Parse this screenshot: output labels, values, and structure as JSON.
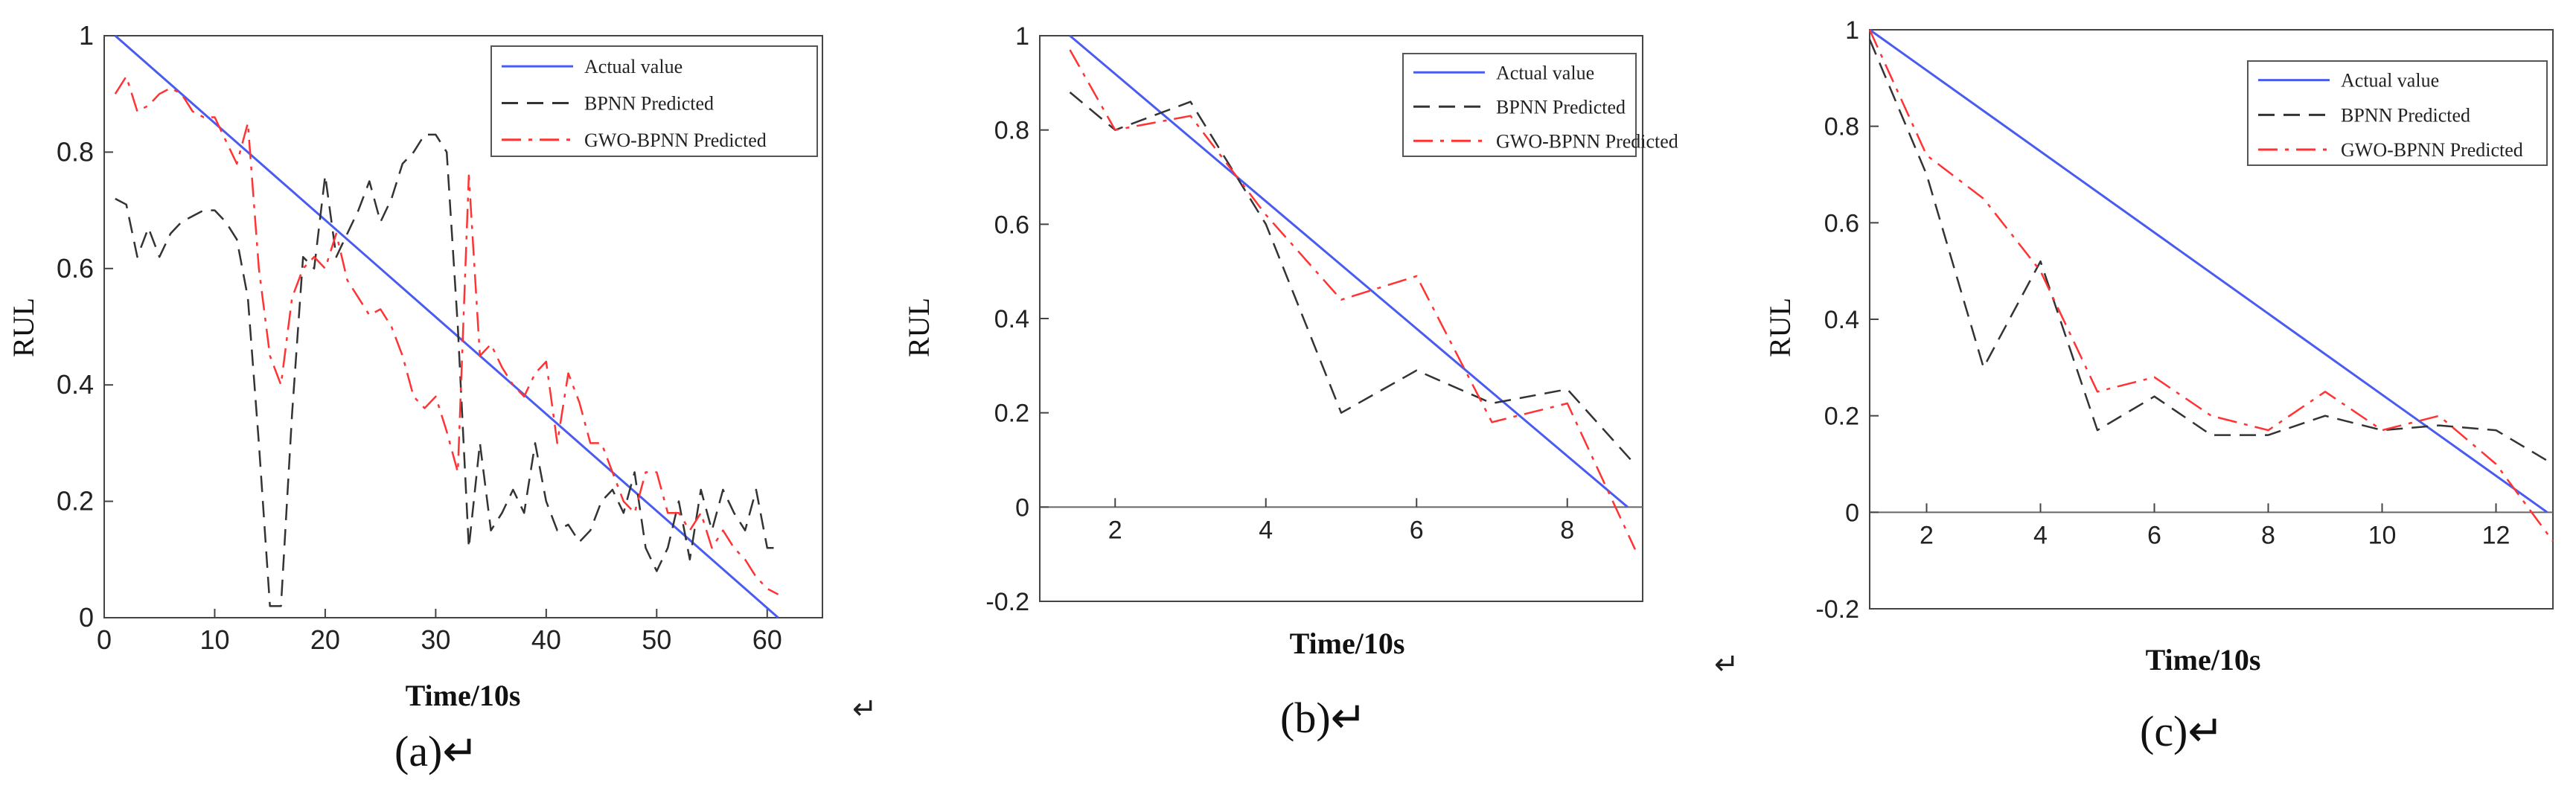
{
  "chart_data": [
    {
      "type": "line",
      "caption": "(a)↵",
      "xlabel": "Time/10s",
      "ylabel": "RUL",
      "xlim": [
        0,
        65
      ],
      "ylim": [
        0,
        1
      ],
      "xticks": [
        0,
        10,
        20,
        30,
        40,
        50,
        60
      ],
      "yticks": [
        0,
        0.2,
        0.4,
        0.6,
        0.8,
        1
      ],
      "legend_position": "top-right",
      "series": [
        {
          "name": "Actual value",
          "style": "solid",
          "color": "#4a5cf0",
          "points": [
            [
              1,
              1.0
            ],
            [
              61,
              0.0
            ]
          ]
        },
        {
          "name": "BPNN Predicted",
          "style": "dashed",
          "color": "#333333",
          "points": [
            [
              1,
              0.72
            ],
            [
              2,
              0.71
            ],
            [
              3,
              0.62
            ],
            [
              4,
              0.67
            ],
            [
              5,
              0.62
            ],
            [
              6,
              0.66
            ],
            [
              7,
              0.68
            ],
            [
              8,
              0.69
            ],
            [
              9,
              0.7
            ],
            [
              10,
              0.7
            ],
            [
              11,
              0.68
            ],
            [
              12,
              0.65
            ],
            [
              13,
              0.55
            ],
            [
              14,
              0.3
            ],
            [
              15,
              0.02
            ],
            [
              16,
              0.02
            ],
            [
              17,
              0.35
            ],
            [
              18,
              0.62
            ],
            [
              19,
              0.6
            ],
            [
              20,
              0.76
            ],
            [
              21,
              0.62
            ],
            [
              22,
              0.66
            ],
            [
              23,
              0.7
            ],
            [
              24,
              0.75
            ],
            [
              25,
              0.68
            ],
            [
              26,
              0.72
            ],
            [
              27,
              0.78
            ],
            [
              28,
              0.8
            ],
            [
              29,
              0.83
            ],
            [
              30,
              0.83
            ],
            [
              31,
              0.8
            ],
            [
              32,
              0.5
            ],
            [
              33,
              0.12
            ],
            [
              34,
              0.3
            ],
            [
              35,
              0.15
            ],
            [
              36,
              0.18
            ],
            [
              37,
              0.22
            ],
            [
              38,
              0.18
            ],
            [
              39,
              0.3
            ],
            [
              40,
              0.2
            ],
            [
              41,
              0.15
            ],
            [
              42,
              0.16
            ],
            [
              43,
              0.13
            ],
            [
              44,
              0.15
            ],
            [
              45,
              0.2
            ],
            [
              46,
              0.22
            ],
            [
              47,
              0.18
            ],
            [
              48,
              0.25
            ],
            [
              49,
              0.12
            ],
            [
              50,
              0.08
            ],
            [
              51,
              0.12
            ],
            [
              52,
              0.2
            ],
            [
              53,
              0.1
            ],
            [
              54,
              0.22
            ],
            [
              55,
              0.15
            ],
            [
              56,
              0.22
            ],
            [
              57,
              0.18
            ],
            [
              58,
              0.15
            ],
            [
              59,
              0.22
            ],
            [
              60,
              0.12
            ],
            [
              61,
              0.12
            ]
          ]
        },
        {
          "name": "GWO-BPNN Predicted",
          "style": "dashdot",
          "color": "#ff3333",
          "points": [
            [
              1,
              0.9
            ],
            [
              2,
              0.93
            ],
            [
              3,
              0.87
            ],
            [
              4,
              0.88
            ],
            [
              5,
              0.9
            ],
            [
              6,
              0.91
            ],
            [
              7,
              0.9
            ],
            [
              8,
              0.87
            ],
            [
              9,
              0.86
            ],
            [
              10,
              0.86
            ],
            [
              11,
              0.82
            ],
            [
              12,
              0.78
            ],
            [
              13,
              0.85
            ],
            [
              14,
              0.6
            ],
            [
              15,
              0.45
            ],
            [
              16,
              0.4
            ],
            [
              17,
              0.55
            ],
            [
              18,
              0.6
            ],
            [
              19,
              0.62
            ],
            [
              20,
              0.6
            ],
            [
              21,
              0.66
            ],
            [
              22,
              0.58
            ],
            [
              23,
              0.55
            ],
            [
              24,
              0.52
            ],
            [
              25,
              0.53
            ],
            [
              26,
              0.5
            ],
            [
              27,
              0.45
            ],
            [
              28,
              0.38
            ],
            [
              29,
              0.36
            ],
            [
              30,
              0.38
            ],
            [
              31,
              0.32
            ],
            [
              32,
              0.25
            ],
            [
              33,
              0.76
            ],
            [
              34,
              0.45
            ],
            [
              35,
              0.47
            ],
            [
              36,
              0.43
            ],
            [
              37,
              0.4
            ],
            [
              38,
              0.38
            ],
            [
              39,
              0.42
            ],
            [
              40,
              0.44
            ],
            [
              41,
              0.3
            ],
            [
              42,
              0.42
            ],
            [
              43,
              0.37
            ],
            [
              44,
              0.3
            ],
            [
              45,
              0.3
            ],
            [
              46,
              0.25
            ],
            [
              47,
              0.2
            ],
            [
              48,
              0.18
            ],
            [
              49,
              0.25
            ],
            [
              50,
              0.25
            ],
            [
              51,
              0.18
            ],
            [
              52,
              0.18
            ],
            [
              53,
              0.15
            ],
            [
              54,
              0.18
            ],
            [
              55,
              0.12
            ],
            [
              56,
              0.15
            ],
            [
              57,
              0.12
            ],
            [
              58,
              0.1
            ],
            [
              59,
              0.07
            ],
            [
              60,
              0.05
            ],
            [
              61,
              0.04
            ]
          ]
        }
      ]
    },
    {
      "type": "line",
      "caption": "(b)↵",
      "xlabel": "Time/10s",
      "ylabel": "RUL",
      "xlim": [
        1,
        9
      ],
      "ylim": [
        -0.2,
        1
      ],
      "xticks": [
        2,
        4,
        6,
        8
      ],
      "yticks": [
        -0.2,
        0,
        0.2,
        0.4,
        0.6,
        0.8,
        1
      ],
      "zero_line": true,
      "legend_position": "top-right",
      "series": [
        {
          "name": "Actual value",
          "style": "solid",
          "color": "#4a5cf0",
          "points": [
            [
              1.4,
              1.0
            ],
            [
              8.8,
              0.0
            ]
          ]
        },
        {
          "name": "BPNN Predicted",
          "style": "dashed",
          "color": "#333333",
          "points": [
            [
              1.4,
              0.88
            ],
            [
              2,
              0.8
            ],
            [
              3,
              0.86
            ],
            [
              4,
              0.6
            ],
            [
              5,
              0.2
            ],
            [
              6,
              0.29
            ],
            [
              7,
              0.22
            ],
            [
              8,
              0.25
            ],
            [
              8.9,
              0.09
            ]
          ]
        },
        {
          "name": "GWO-BPNN Predicted",
          "style": "dashdot",
          "color": "#ff3333",
          "points": [
            [
              1.4,
              0.97
            ],
            [
              2,
              0.8
            ],
            [
              3,
              0.83
            ],
            [
              4,
              0.62
            ],
            [
              5,
              0.44
            ],
            [
              6,
              0.49
            ],
            [
              7,
              0.18
            ],
            [
              8,
              0.22
            ],
            [
              8.9,
              -0.09
            ]
          ]
        }
      ]
    },
    {
      "type": "line",
      "caption": "(c)↵",
      "xlabel": "Time/10s",
      "ylabel": "RUL",
      "xlim": [
        1,
        13
      ],
      "ylim": [
        -0.2,
        1
      ],
      "xticks": [
        2,
        4,
        6,
        8,
        10,
        12
      ],
      "yticks": [
        -0.2,
        0,
        0.2,
        0.4,
        0.6,
        0.8,
        1
      ],
      "zero_line": true,
      "legend_position": "top-right",
      "series": [
        {
          "name": "Actual value",
          "style": "solid",
          "color": "#4a5cf0",
          "points": [
            [
              1,
              1.0
            ],
            [
              12.9,
              0.0
            ]
          ]
        },
        {
          "name": "BPNN Predicted",
          "style": "dashed",
          "color": "#333333",
          "points": [
            [
              1,
              0.98
            ],
            [
              2,
              0.7
            ],
            [
              3,
              0.3
            ],
            [
              4,
              0.52
            ],
            [
              5,
              0.17
            ],
            [
              6,
              0.24
            ],
            [
              7,
              0.16
            ],
            [
              8,
              0.16
            ],
            [
              9,
              0.2
            ],
            [
              10,
              0.17
            ],
            [
              11,
              0.18
            ],
            [
              12,
              0.17
            ],
            [
              13,
              0.1
            ]
          ]
        },
        {
          "name": "GWO-BPNN Predicted",
          "style": "dashdot",
          "color": "#ff3333",
          "points": [
            [
              1,
              1.0
            ],
            [
              2,
              0.74
            ],
            [
              3,
              0.65
            ],
            [
              4,
              0.5
            ],
            [
              5,
              0.25
            ],
            [
              6,
              0.28
            ],
            [
              7,
              0.2
            ],
            [
              8,
              0.17
            ],
            [
              9,
              0.25
            ],
            [
              10,
              0.17
            ],
            [
              11,
              0.2
            ],
            [
              12,
              0.1
            ],
            [
              13,
              -0.06
            ]
          ]
        }
      ]
    }
  ]
}
